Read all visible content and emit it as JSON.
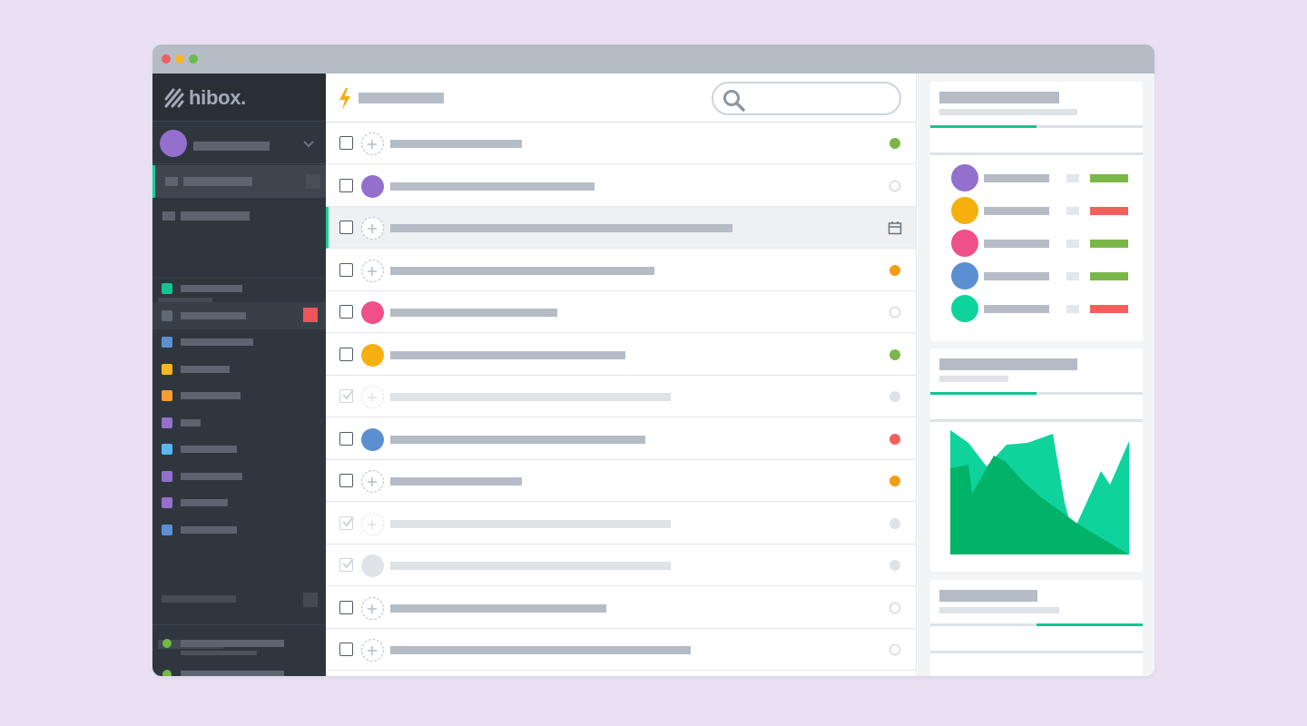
{
  "app": {
    "logo_text": "hibox.",
    "window_controls": [
      "close",
      "minimize",
      "zoom"
    ]
  },
  "colors": {
    "background": "#e9e1f3",
    "sidebar": "#30363e",
    "accent": "#0fd39c",
    "accent_progress": "#14c392",
    "placeholder_dark": "#5b646f",
    "placeholder_light": "#b5bcc6",
    "status_green": "#6fbb45",
    "status_orange": "#f59d13",
    "status_red": "#f25f5c",
    "bar_green": "#7ab648",
    "bar_red": "#f25f5c"
  },
  "sidebar": {
    "user": {
      "avatar_color": "#9370cc"
    },
    "nav": [
      {
        "icon": "inbox-icon",
        "active": true
      },
      {
        "icon": "folder-icon",
        "active": false
      }
    ],
    "projects": [
      {
        "color": "#14c392",
        "highlighted": false,
        "badge": false
      },
      {
        "color": "#5f6974",
        "highlighted": true,
        "badge": true
      },
      {
        "color": "#5b8fd1",
        "highlighted": false,
        "badge": false
      },
      {
        "color": "#f5b723",
        "highlighted": false,
        "badge": false
      },
      {
        "color": "#f59d33",
        "highlighted": false,
        "badge": false
      },
      {
        "color": "#9370cc",
        "highlighted": false,
        "badge": false
      },
      {
        "color": "#5ab6ef",
        "highlighted": false,
        "badge": false
      },
      {
        "color": "#9370cc",
        "highlighted": false,
        "badge": false
      },
      {
        "color": "#9370cc",
        "highlighted": false,
        "badge": false
      },
      {
        "color": "#5b8fd1",
        "highlighted": false,
        "badge": false
      }
    ],
    "statuses": [
      {
        "color": "#6fbb45"
      },
      {
        "color": "#6fbb45"
      }
    ]
  },
  "main": {
    "header_icon": "bolt-icon",
    "search": {
      "placeholder": ""
    },
    "tasks": [
      {
        "done": false,
        "assignee": null,
        "title_fraction": 0.64,
        "status": "dot",
        "status_color": "#7ab648"
      },
      {
        "done": false,
        "assignee": "#9370cc",
        "title_fraction": 0.99,
        "status": "hollow"
      },
      {
        "done": false,
        "assignee": null,
        "title_fraction": 1.66,
        "status": "calendar",
        "selected": true
      },
      {
        "done": false,
        "assignee": null,
        "title_fraction": 1.28,
        "status": "dot",
        "status_color": "#f59d13"
      },
      {
        "done": false,
        "assignee": "#ee5087",
        "title_fraction": 0.81,
        "status": "hollow"
      },
      {
        "done": false,
        "assignee": "#f5b00f",
        "title_fraction": 1.14,
        "status": "dot",
        "status_color": "#7ab648"
      },
      {
        "done": true,
        "assignee": null,
        "title_fraction": 1.36,
        "status": "dot",
        "status_color": "#dfe2e6"
      },
      {
        "done": false,
        "assignee": "#5b8fd1",
        "title_fraction": 1.24,
        "status": "dot",
        "status_color": "#f25f5c"
      },
      {
        "done": false,
        "assignee": null,
        "title_fraction": 0.64,
        "status": "dot",
        "status_color": "#f59d13"
      },
      {
        "done": true,
        "assignee": null,
        "title_fraction": 1.36,
        "status": "dot",
        "status_color": "#dfe2e6"
      },
      {
        "done": true,
        "assignee": "#dfe2e6",
        "title_fraction": 1.36,
        "status": "dot",
        "status_color": "#dfe2e6"
      },
      {
        "done": false,
        "assignee": null,
        "title_fraction": 1.05,
        "status": "hollow"
      },
      {
        "done": false,
        "assignee": null,
        "title_fraction": 1.46,
        "status": "hollow"
      }
    ]
  },
  "panel": {
    "team_card": {
      "progress": 0.5,
      "members": [
        {
          "color": "#9370cc",
          "bar_color": "#7ab648"
        },
        {
          "color": "#f5b00f",
          "bar_color": "#f25f5c"
        },
        {
          "color": "#ee5087",
          "bar_color": "#7ab648"
        },
        {
          "color": "#5b8fd1",
          "bar_color": "#7ab648"
        },
        {
          "color": "#0fd39c",
          "bar_color": "#f25f5c"
        }
      ]
    },
    "chart_card": {
      "progress": 0.5,
      "series_colors": [
        "#0fd39c",
        "#00b368"
      ]
    },
    "third_card": {
      "progress_start": 0.5,
      "progress": 0.5
    }
  }
}
